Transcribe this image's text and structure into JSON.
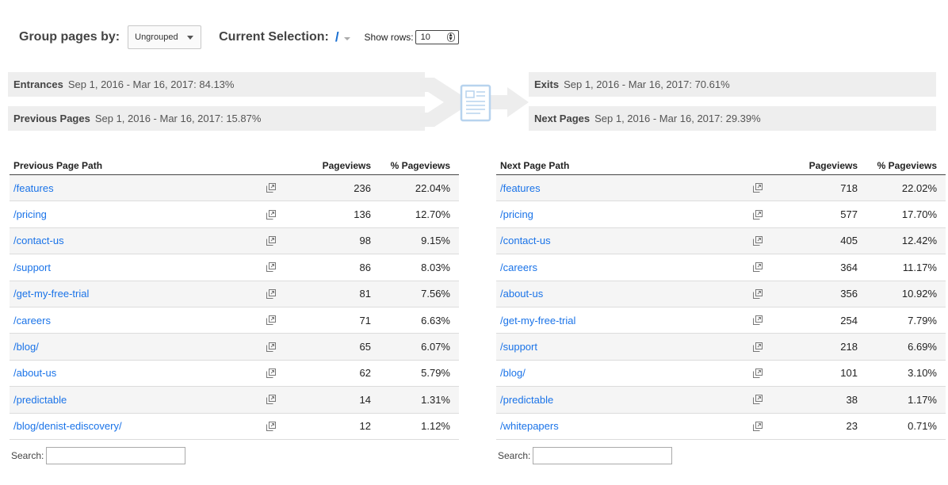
{
  "controls": {
    "group_label": "Group pages by:",
    "group_value": "Ungrouped",
    "selection_label": "Current Selection:",
    "selection_value": "/",
    "rows_label": "Show rows:",
    "rows_value": "10"
  },
  "summary": {
    "entrances": {
      "label": "Entrances",
      "text": "Sep 1, 2016 - Mar 16, 2017: 84.13%"
    },
    "previous_pages": {
      "label": "Previous Pages",
      "text": "Sep 1, 2016 - Mar 16, 2017: 15.87%"
    },
    "exits": {
      "label": "Exits",
      "text": "Sep 1, 2016 - Mar 16, 2017: 70.61%"
    },
    "next_pages": {
      "label": "Next Pages",
      "text": "Sep 1, 2016 - Mar 16, 2017: 29.39%"
    }
  },
  "previous_table": {
    "headers": {
      "path": "Previous Page Path",
      "views": "Pageviews",
      "pct": "% Pageviews"
    },
    "rows": [
      {
        "path": "/features",
        "views": "236",
        "pct": "22.04%"
      },
      {
        "path": "/pricing",
        "views": "136",
        "pct": "12.70%"
      },
      {
        "path": "/contact-us",
        "views": "98",
        "pct": "9.15%"
      },
      {
        "path": "/support",
        "views": "86",
        "pct": "8.03%"
      },
      {
        "path": "/get-my-free-trial",
        "views": "81",
        "pct": "7.56%"
      },
      {
        "path": "/careers",
        "views": "71",
        "pct": "6.63%"
      },
      {
        "path": "/blog/",
        "views": "65",
        "pct": "6.07%"
      },
      {
        "path": "/about-us",
        "views": "62",
        "pct": "5.79%"
      },
      {
        "path": "/predictable",
        "views": "14",
        "pct": "1.31%"
      },
      {
        "path": "/blog/denist-ediscovery/",
        "views": "12",
        "pct": "1.12%"
      }
    ],
    "search_label": "Search:"
  },
  "next_table": {
    "headers": {
      "path": "Next Page Path",
      "views": "Pageviews",
      "pct": "% Pageviews"
    },
    "rows": [
      {
        "path": "/features",
        "views": "718",
        "pct": "22.02%"
      },
      {
        "path": "/pricing",
        "views": "577",
        "pct": "17.70%"
      },
      {
        "path": "/contact-us",
        "views": "405",
        "pct": "12.42%"
      },
      {
        "path": "/careers",
        "views": "364",
        "pct": "11.17%"
      },
      {
        "path": "/about-us",
        "views": "356",
        "pct": "10.92%"
      },
      {
        "path": "/get-my-free-trial",
        "views": "254",
        "pct": "7.79%"
      },
      {
        "path": "/support",
        "views": "218",
        "pct": "6.69%"
      },
      {
        "path": "/blog/",
        "views": "101",
        "pct": "3.10%"
      },
      {
        "path": "/predictable",
        "views": "38",
        "pct": "1.17%"
      },
      {
        "path": "/whitepapers",
        "views": "23",
        "pct": "0.71%"
      }
    ],
    "search_label": "Search:"
  },
  "icons": {
    "row_action": "open-in-new-window-icon",
    "flow": "page-document-icon"
  },
  "colors": {
    "link": "#1a73e8",
    "bar_bg": "#eeeeee",
    "flow_icon": "#b7d3ee"
  }
}
